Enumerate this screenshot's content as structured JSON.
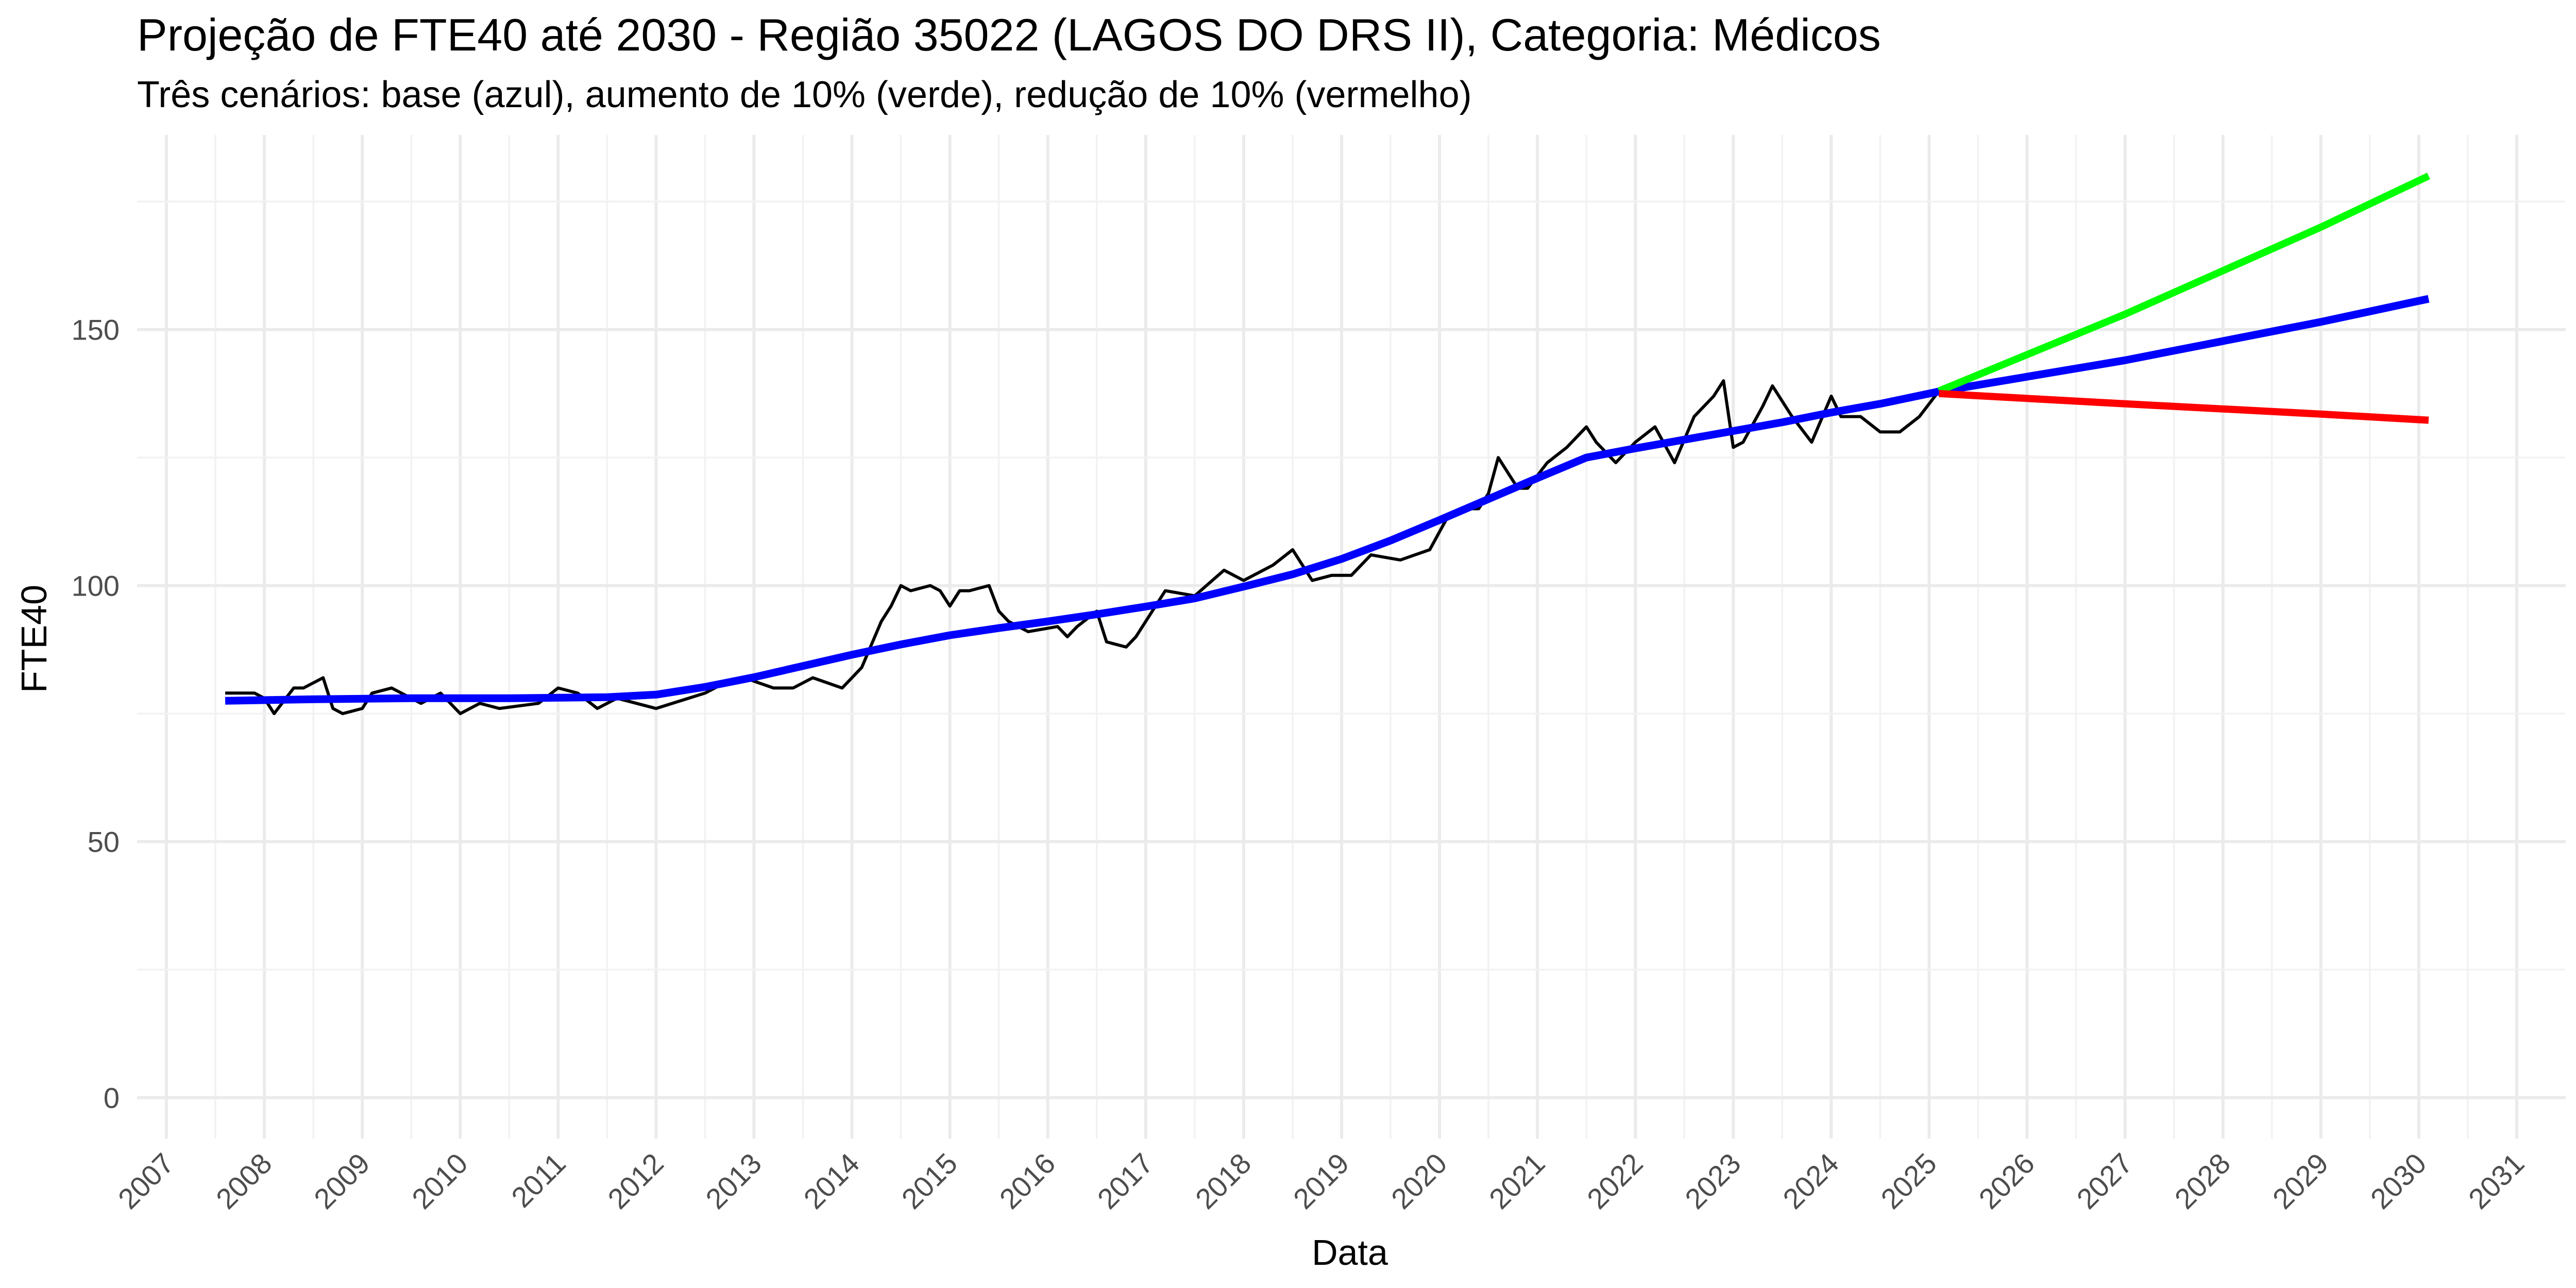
{
  "chart_data": {
    "type": "line",
    "title": "Projeção de FTE40 até 2030 - Região 35022 (LAGOS DO DRS II), Categoria: Médicos",
    "subtitle": "Três cenários: base (azul), aumento de 10% (verde), redução de 10% (vermelho)",
    "xlabel": "Data",
    "ylabel": "FTE40",
    "xlim": [
      2006.7,
      2031.5
    ],
    "ylim": [
      -8,
      188
    ],
    "x_ticks": [
      "2007",
      "2008",
      "2009",
      "2010",
      "2011",
      "2012",
      "2013",
      "2014",
      "2015",
      "2016",
      "2017",
      "2018",
      "2019",
      "2020",
      "2021",
      "2022",
      "2023",
      "2024",
      "2025",
      "2026",
      "2027",
      "2028",
      "2029",
      "2030",
      "2031"
    ],
    "y_ticks": [
      "0",
      "50",
      "100",
      "150"
    ],
    "grid": true,
    "legend": "none",
    "series": [
      {
        "color": "#000000",
        "x": [
          2007.6,
          2007.9,
          2008.0,
          2008.1,
          2008.3,
          2008.4,
          2008.6,
          2008.7,
          2008.8,
          2009.0,
          2009.1,
          2009.3,
          2009.6,
          2009.8,
          2010.0,
          2010.2,
          2010.4,
          2010.8,
          2011.0,
          2011.2,
          2011.4,
          2011.6,
          2011.8,
          2012.0,
          2012.5,
          2012.7,
          2012.9,
          2013.2,
          2013.4,
          2013.6,
          2013.9,
          2014.1,
          2014.3,
          2014.4,
          2014.5,
          2014.6,
          2014.8,
          2014.9,
          2015.0,
          2015.1,
          2015.2,
          2015.4,
          2015.5,
          2015.6,
          2015.8,
          2016.1,
          2016.2,
          2016.3,
          2016.5,
          2016.6,
          2016.8,
          2016.9,
          2017.0,
          2017.2,
          2017.5,
          2017.8,
          2018.0,
          2018.3,
          2018.5,
          2018.7,
          2018.9,
          2019.1,
          2019.3,
          2019.6,
          2019.9,
          2020.1,
          2020.3,
          2020.4,
          2020.5,
          2020.6,
          2020.8,
          2020.9,
          2021.1,
          2021.3,
          2021.5,
          2021.6,
          2021.8,
          2022.0,
          2022.2,
          2022.4,
          2022.6,
          2022.8,
          2022.9,
          2023.0,
          2023.1,
          2023.3,
          2023.4,
          2023.6,
          2023.8,
          2024.0,
          2024.1,
          2024.3,
          2024.5,
          2024.7,
          2024.9,
          2025.1
        ],
        "values": [
          79,
          79,
          78,
          75,
          80,
          80,
          82,
          76,
          75,
          76,
          79,
          80,
          77,
          79,
          75,
          77,
          76,
          77,
          80,
          79,
          76,
          78,
          77,
          76,
          79,
          81,
          82,
          80,
          80,
          82,
          80,
          84,
          93,
          96,
          100,
          99,
          100,
          99,
          96,
          99,
          99,
          100,
          95,
          93,
          91,
          92,
          90,
          92,
          95,
          89,
          88,
          90,
          93,
          99,
          98,
          103,
          101,
          104,
          107,
          101,
          102,
          102,
          106,
          105,
          107,
          114,
          115,
          115,
          118,
          125,
          119,
          119,
          124,
          127,
          131,
          128,
          124,
          128,
          131,
          124,
          133,
          137,
          140,
          127,
          128,
          135,
          139,
          133,
          128,
          137,
          133,
          133,
          130,
          130,
          133,
          138
        ]
      },
      {
        "color": "#0000ff",
        "x": [
          2007.6,
          2008.5,
          2009.5,
          2010.5,
          2011.5,
          2012.0,
          2012.5,
          2013.0,
          2013.5,
          2014.0,
          2014.5,
          2015.0,
          2015.5,
          2016.0,
          2016.5,
          2017.0,
          2017.5,
          2018.0,
          2018.5,
          2019.0,
          2019.5,
          2020.0,
          2020.5,
          2021.0,
          2021.5,
          2022.0,
          2022.5,
          2023.0,
          2023.5,
          2024.0,
          2024.5,
          2025.1,
          2027.0,
          2029.0,
          2030.1
        ],
        "values": [
          77.5,
          77.8,
          78.0,
          78.0,
          78.2,
          78.7,
          80.2,
          82.1,
          84.3,
          86.5,
          88.5,
          90.3,
          91.7,
          93.0,
          94.4,
          95.9,
          97.5,
          99.8,
          102.2,
          105.2,
          108.8,
          112.8,
          116.9,
          121.0,
          125.0,
          126.8,
          128.5,
          130.2,
          131.9,
          133.8,
          135.5,
          137.9,
          144.0,
          151.5,
          156.0
        ]
      },
      {
        "color": "#00ff00",
        "x": [
          2025.1,
          2027.0,
          2029.0,
          2030.1
        ],
        "values": [
          138,
          153,
          170,
          180
        ]
      },
      {
        "color": "#ff0000",
        "x": [
          2025.1,
          2027.0,
          2029.0,
          2030.1
        ],
        "values": [
          137.5,
          135.5,
          133.5,
          132.3
        ]
      }
    ]
  }
}
